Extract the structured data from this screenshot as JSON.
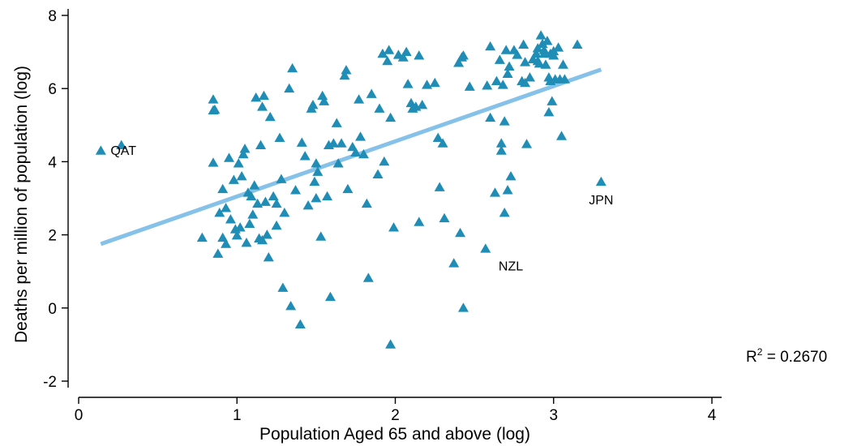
{
  "chart_data": {
    "type": "scatter",
    "title": "",
    "xlabel": "Population Aged 65 and above (log)",
    "ylabel": "Deaths per million of population (log)",
    "xlim": [
      0,
      4
    ],
    "ylim": [
      -2.3,
      8.3
    ],
    "x_ticks": [
      0,
      1,
      2,
      3,
      4
    ],
    "x_tick_labels": [
      "0",
      "1",
      "2",
      "3",
      "4"
    ],
    "y_ticks": [
      -2,
      0,
      2,
      4,
      6,
      8
    ],
    "y_tick_labels": [
      "-2",
      "0",
      "2",
      "4",
      "6",
      "8"
    ],
    "grid": false,
    "marker_color": "#1f8db5",
    "fit_color": "#85c1e9",
    "r2_prefix": "R",
    "r2_exponent": "2",
    "r2_value": " = 0.2670",
    "fit_line": {
      "x": [
        0.14,
        3.3
      ],
      "y": [
        1.75,
        6.52
      ]
    },
    "annotations": [
      {
        "text": "QAT",
        "x": 0.14,
        "y": 4.3
      },
      {
        "text": "JPN",
        "x": 3.3,
        "y": 3.45
      },
      {
        "text": "NZL",
        "x": 2.73,
        "y": 1.65
      }
    ],
    "points": [
      [
        0.14,
        4.3
      ],
      [
        0.27,
        4.45
      ],
      [
        0.78,
        1.92
      ],
      [
        0.85,
        5.7
      ],
      [
        0.85,
        5.4
      ],
      [
        0.85,
        3.97
      ],
      [
        0.86,
        5.42
      ],
      [
        0.88,
        1.48
      ],
      [
        0.89,
        2.6
      ],
      [
        0.91,
        3.25
      ],
      [
        0.91,
        1.92
      ],
      [
        0.93,
        2.73
      ],
      [
        0.93,
        1.75
      ],
      [
        0.95,
        4.1
      ],
      [
        0.96,
        2.42
      ],
      [
        0.98,
        3.5
      ],
      [
        0.99,
        2.15
      ],
      [
        1.0,
        1.98
      ],
      [
        1.01,
        3.95
      ],
      [
        1.02,
        2.2
      ],
      [
        1.03,
        3.6
      ],
      [
        1.04,
        4.2
      ],
      [
        1.05,
        4.35
      ],
      [
        1.06,
        1.78
      ],
      [
        1.07,
        3.15
      ],
      [
        1.08,
        2.3
      ],
      [
        1.09,
        3.05
      ],
      [
        1.1,
        2.55
      ],
      [
        1.11,
        3.35
      ],
      [
        1.12,
        5.75
      ],
      [
        1.13,
        2.85
      ],
      [
        1.14,
        1.9
      ],
      [
        1.15,
        4.45
      ],
      [
        1.16,
        5.5
      ],
      [
        1.16,
        1.85
      ],
      [
        1.17,
        5.8
      ],
      [
        1.18,
        2.9
      ],
      [
        1.19,
        2.0
      ],
      [
        1.2,
        1.38
      ],
      [
        1.21,
        5.22
      ],
      [
        1.23,
        3.05
      ],
      [
        1.25,
        2.85
      ],
      [
        1.25,
        2.25
      ],
      [
        1.27,
        4.65
      ],
      [
        1.28,
        3.52
      ],
      [
        1.29,
        0.55
      ],
      [
        1.3,
        2.6
      ],
      [
        1.33,
        6.0
      ],
      [
        1.34,
        0.05
      ],
      [
        1.35,
        6.55
      ],
      [
        1.37,
        3.22
      ],
      [
        1.4,
        -0.45
      ],
      [
        1.41,
        4.52
      ],
      [
        1.43,
        4.15
      ],
      [
        1.45,
        2.8
      ],
      [
        1.47,
        5.45
      ],
      [
        1.48,
        5.55
      ],
      [
        1.49,
        3.45
      ],
      [
        1.5,
        3.95
      ],
      [
        1.5,
        3.0
      ],
      [
        1.51,
        3.72
      ],
      [
        1.53,
        1.95
      ],
      [
        1.54,
        5.8
      ],
      [
        1.55,
        5.65
      ],
      [
        1.57,
        3.05
      ],
      [
        1.58,
        4.45
      ],
      [
        1.59,
        0.3
      ],
      [
        1.61,
        4.5
      ],
      [
        1.63,
        5.05
      ],
      [
        1.64,
        3.95
      ],
      [
        1.66,
        4.5
      ],
      [
        1.68,
        6.35
      ],
      [
        1.69,
        6.5
      ],
      [
        1.7,
        3.25
      ],
      [
        1.73,
        4.4
      ],
      [
        1.75,
        4.25
      ],
      [
        1.77,
        5.7
      ],
      [
        1.78,
        4.68
      ],
      [
        1.8,
        4.2
      ],
      [
        1.82,
        2.85
      ],
      [
        1.83,
        0.82
      ],
      [
        1.85,
        5.85
      ],
      [
        1.89,
        3.65
      ],
      [
        1.9,
        5.45
      ],
      [
        1.92,
        6.95
      ],
      [
        1.93,
        4.0
      ],
      [
        1.95,
        6.75
      ],
      [
        1.96,
        7.05
      ],
      [
        1.97,
        5.2
      ],
      [
        1.97,
        -1.0
      ],
      [
        1.99,
        2.2
      ],
      [
        2.02,
        6.92
      ],
      [
        2.05,
        6.85
      ],
      [
        2.07,
        7.0
      ],
      [
        2.08,
        6.12
      ],
      [
        2.1,
        5.6
      ],
      [
        2.11,
        5.45
      ],
      [
        2.13,
        5.5
      ],
      [
        2.15,
        6.9
      ],
      [
        2.15,
        2.35
      ],
      [
        2.17,
        5.55
      ],
      [
        2.2,
        6.1
      ],
      [
        2.25,
        6.15
      ],
      [
        2.27,
        4.65
      ],
      [
        2.28,
        3.3
      ],
      [
        2.3,
        4.5
      ],
      [
        2.31,
        2.45
      ],
      [
        2.37,
        1.22
      ],
      [
        2.4,
        6.7
      ],
      [
        2.41,
        2.05
      ],
      [
        2.42,
        6.85
      ],
      [
        2.43,
        6.9
      ],
      [
        2.43,
        0.0
      ],
      [
        2.47,
        6.05
      ],
      [
        2.57,
        1.62
      ],
      [
        2.58,
        6.08
      ],
      [
        2.6,
        7.15
      ],
      [
        2.6,
        5.2
      ],
      [
        2.63,
        3.15
      ],
      [
        2.64,
        6.2
      ],
      [
        2.66,
        6.78
      ],
      [
        2.67,
        4.5
      ],
      [
        2.67,
        4.3
      ],
      [
        2.68,
        6.1
      ],
      [
        2.69,
        2.6
      ],
      [
        2.69,
        5.1
      ],
      [
        2.7,
        7.05
      ],
      [
        2.71,
        3.22
      ],
      [
        2.71,
        6.4
      ],
      [
        2.72,
        6.6
      ],
      [
        2.73,
        3.6
      ],
      [
        2.75,
        7.05
      ],
      [
        2.77,
        6.92
      ],
      [
        2.8,
        6.2
      ],
      [
        2.81,
        7.2
      ],
      [
        2.82,
        6.15
      ],
      [
        2.82,
        6.72
      ],
      [
        2.83,
        4.48
      ],
      [
        2.85,
        6.3
      ],
      [
        2.87,
        6.8
      ],
      [
        2.89,
        6.95
      ],
      [
        2.9,
        7.1
      ],
      [
        2.9,
        6.75
      ],
      [
        2.91,
        6.68
      ],
      [
        2.92,
        7.45
      ],
      [
        2.93,
        7.22
      ],
      [
        2.94,
        6.95
      ],
      [
        2.94,
        7.05
      ],
      [
        2.95,
        6.65
      ],
      [
        2.96,
        7.3
      ],
      [
        2.97,
        6.3
      ],
      [
        2.97,
        5.35
      ],
      [
        2.98,
        6.2
      ],
      [
        2.98,
        6.95
      ],
      [
        2.99,
        5.65
      ],
      [
        3.0,
        6.9
      ],
      [
        3.0,
        7.02
      ],
      [
        3.01,
        6.25
      ],
      [
        3.03,
        7.12
      ],
      [
        3.04,
        6.25
      ],
      [
        3.05,
        4.7
      ],
      [
        3.06,
        6.65
      ],
      [
        3.07,
        6.25
      ],
      [
        3.15,
        7.2
      ],
      [
        3.3,
        3.45
      ]
    ]
  }
}
